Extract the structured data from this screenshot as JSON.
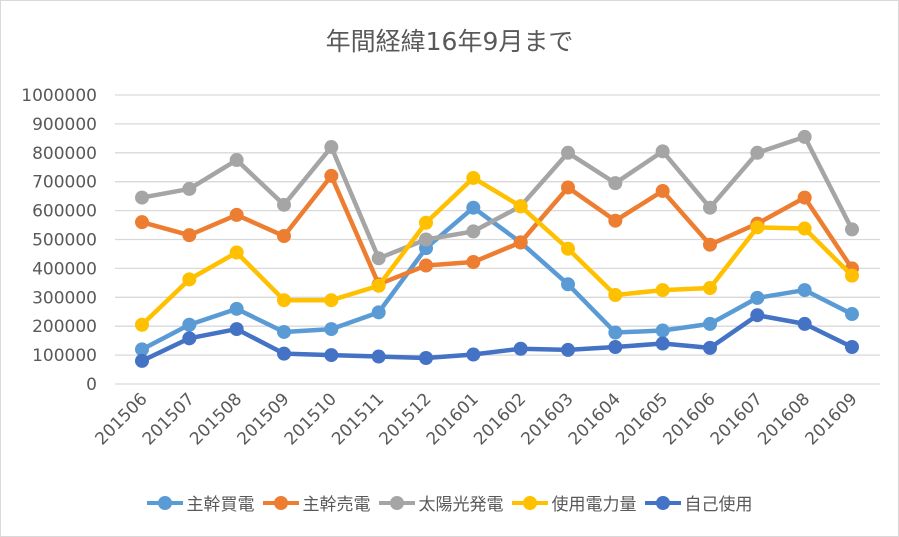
{
  "chart_data": {
    "type": "line",
    "title": "年間経緯16年9月まで",
    "xlabel": "",
    "ylabel": "",
    "ylim": [
      0,
      1000000
    ],
    "yticks": [
      "0",
      "100000",
      "200000",
      "300000",
      "400000",
      "500000",
      "600000",
      "700000",
      "800000",
      "900000",
      "1000000"
    ],
    "grid": true,
    "legend_position": "bottom",
    "categories": [
      "201506",
      "201507",
      "201508",
      "201509",
      "201510",
      "201511",
      "201512",
      "201601",
      "201602",
      "201603",
      "201604",
      "201605",
      "201606",
      "201607",
      "201608",
      "201609"
    ],
    "series": [
      {
        "name": "主幹買電",
        "color": "#5b9bd5",
        "values": [
          120000,
          205000,
          260000,
          180000,
          190000,
          248000,
          470000,
          610000,
          490000,
          345000,
          178000,
          185000,
          208000,
          298000,
          325000,
          242000
        ]
      },
      {
        "name": "主幹売電",
        "color": "#ed7d31",
        "values": [
          560000,
          515000,
          585000,
          512000,
          720000,
          345000,
          410000,
          422000,
          490000,
          680000,
          565000,
          668000,
          482000,
          555000,
          645000,
          400000
        ]
      },
      {
        "name": "太陽光発電",
        "color": "#a5a5a5",
        "values": [
          645000,
          675000,
          775000,
          620000,
          820000,
          435000,
          500000,
          528000,
          615000,
          800000,
          695000,
          805000,
          610000,
          800000,
          855000,
          535000
        ]
      },
      {
        "name": "使用電力量",
        "color": "#ffc000",
        "values": [
          205000,
          362000,
          455000,
          290000,
          290000,
          340000,
          558000,
          713000,
          615000,
          468000,
          308000,
          325000,
          332000,
          542000,
          538000,
          375000
        ]
      },
      {
        "name": "自己使用",
        "color": "#4472c4",
        "values": [
          80000,
          158000,
          190000,
          105000,
          100000,
          95000,
          90000,
          102000,
          122000,
          118000,
          128000,
          140000,
          125000,
          238000,
          208000,
          128000
        ]
      }
    ]
  }
}
